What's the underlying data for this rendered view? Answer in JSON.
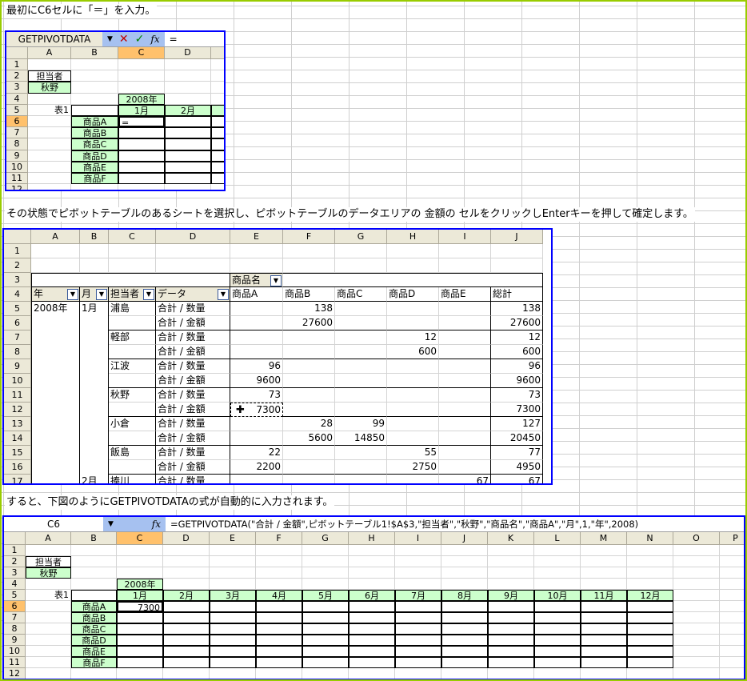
{
  "captions": {
    "step1": "最初にC6セルに「＝」を入力。",
    "step2": "その状態でピボットテーブルのあるシートを選択し、ピボットテーブルのデータエリアの 金額の セルをクリックしEnterキーを押して確定します。",
    "step3": "すると、下図のようにGETPIVOTDATAの式が自動的に入力されます。"
  },
  "colors": {
    "frame": "#99cc00",
    "panel_border": "#0000ff",
    "header_fill": "#ccffcc",
    "selected_header": "#ffc16c",
    "formula_button_bg": "#a6c1f0"
  },
  "sheet1": {
    "name_box": "GETPIVOTDATA",
    "formula": "=",
    "icons": [
      "dropdown-arrow-icon",
      "cancel-x-icon",
      "enter-check-icon",
      "fx-icon"
    ],
    "fx_label": "fx",
    "col_headers": [
      "A",
      "B",
      "C",
      "D",
      ""
    ],
    "row_headers": [
      "1",
      "2",
      "3",
      "4",
      "5",
      "6",
      "7",
      "8",
      "9",
      "10",
      "11",
      "12"
    ],
    "rows": [
      [
        "",
        "",
        "",
        "",
        ""
      ],
      [
        "担当者",
        "",
        "",
        "",
        ""
      ],
      [
        "秋野",
        "",
        "",
        "",
        ""
      ],
      [
        "",
        "",
        "2008年",
        "",
        ""
      ],
      [
        "表1",
        "",
        "1月",
        "2月",
        ""
      ],
      [
        "",
        "商品A",
        "=",
        "",
        ""
      ],
      [
        "",
        "商品B",
        "",
        "",
        ""
      ],
      [
        "",
        "商品C",
        "",
        "",
        ""
      ],
      [
        "",
        "商品D",
        "",
        "",
        ""
      ],
      [
        "",
        "商品E",
        "",
        "",
        ""
      ],
      [
        "",
        "商品F",
        "",
        "",
        ""
      ],
      [
        "",
        "",
        "",
        "",
        ""
      ]
    ]
  },
  "sheet2": {
    "col_headers": [
      "A",
      "B",
      "C",
      "D",
      "E",
      "F",
      "G",
      "H",
      "I",
      "J"
    ],
    "row_headers": [
      "1",
      "2",
      "3",
      "4",
      "5",
      "6",
      "7",
      "8",
      "9",
      "10",
      "11",
      "12",
      "13",
      "14",
      "15",
      "16",
      "17"
    ],
    "rows": [
      [
        "",
        "",
        "",
        "",
        "",
        "",
        "",
        "",
        "",
        ""
      ],
      [
        "",
        "",
        "",
        "",
        "",
        "",
        "",
        "",
        "",
        ""
      ],
      [
        "",
        "",
        "",
        "",
        "商品名",
        "",
        "",
        "",
        "",
        ""
      ],
      [
        "年",
        "月",
        "担当者",
        "データ",
        "商品A",
        "商品B",
        "商品C",
        "商品D",
        "商品E",
        "総計"
      ],
      [
        "2008年",
        "1月",
        "浦島",
        "合計 / 数量",
        "",
        "138",
        "",
        "",
        "",
        "138"
      ],
      [
        "",
        "",
        "",
        "合計 / 金額",
        "",
        "27600",
        "",
        "",
        "",
        "27600"
      ],
      [
        "",
        "",
        "軽部",
        "合計 / 数量",
        "",
        "",
        "",
        "12",
        "",
        "12"
      ],
      [
        "",
        "",
        "",
        "合計 / 金額",
        "",
        "",
        "",
        "600",
        "",
        "600"
      ],
      [
        "",
        "",
        "江波",
        "合計 / 数量",
        "96",
        "",
        "",
        "",
        "",
        "96"
      ],
      [
        "",
        "",
        "",
        "合計 / 金額",
        "9600",
        "",
        "",
        "",
        "",
        "9600"
      ],
      [
        "",
        "",
        "秋野",
        "合計 / 数量",
        "73",
        "",
        "",
        "",
        "",
        "73"
      ],
      [
        "",
        "",
        "",
        "合計 / 金額",
        "7300",
        "",
        "",
        "",
        "",
        "7300"
      ],
      [
        "",
        "",
        "小倉",
        "合計 / 数量",
        "",
        "28",
        "99",
        "",
        "",
        "127"
      ],
      [
        "",
        "",
        "",
        "合計 / 金額",
        "",
        "5600",
        "14850",
        "",
        "",
        "20450"
      ],
      [
        "",
        "",
        "飯島",
        "合計 / 数量",
        "22",
        "",
        "",
        "55",
        "",
        "77"
      ],
      [
        "",
        "",
        "",
        "合計 / 金額",
        "2200",
        "",
        "",
        "2750",
        "",
        "4950"
      ],
      [
        "",
        "2月",
        "捧川",
        "合計 / 数量",
        "",
        "",
        "",
        "",
        "67",
        "67"
      ]
    ]
  },
  "sheet3": {
    "name_box": "C6",
    "formula": "=GETPIVOTDATA(\"合計 / 金額\",ピボットテーブル1!$A$3,\"担当者\",\"秋野\",\"商品名\",\"商品A\",\"月\",1,\"年\",2008)",
    "icons": [
      "dropdown-arrow-icon",
      "fx-icon"
    ],
    "fx_label": "fx",
    "col_headers": [
      "A",
      "B",
      "C",
      "D",
      "E",
      "F",
      "G",
      "H",
      "I",
      "J",
      "K",
      "L",
      "M",
      "N",
      "O",
      "P"
    ],
    "row_headers": [
      "1",
      "2",
      "3",
      "4",
      "5",
      "6",
      "7",
      "8",
      "9",
      "10",
      "11",
      "12"
    ],
    "rows": [
      [
        "",
        "",
        "",
        "",
        "",
        "",
        "",
        "",
        "",
        "",
        "",
        "",
        "",
        "",
        "",
        ""
      ],
      [
        "担当者",
        "",
        "",
        "",
        "",
        "",
        "",
        "",
        "",
        "",
        "",
        "",
        "",
        "",
        "",
        ""
      ],
      [
        "秋野",
        "",
        "",
        "",
        "",
        "",
        "",
        "",
        "",
        "",
        "",
        "",
        "",
        "",
        "",
        ""
      ],
      [
        "",
        "",
        "2008年",
        "",
        "",
        "",
        "",
        "",
        "",
        "",
        "",
        "",
        "",
        "",
        "",
        ""
      ],
      [
        "表1",
        "",
        "1月",
        "2月",
        "3月",
        "4月",
        "5月",
        "6月",
        "7月",
        "8月",
        "9月",
        "10月",
        "11月",
        "12月",
        "",
        ""
      ],
      [
        "",
        "商品A",
        "7300",
        "",
        "",
        "",
        "",
        "",
        "",
        "",
        "",
        "",
        "",
        "",
        "",
        ""
      ],
      [
        "",
        "商品B",
        "",
        "",
        "",
        "",
        "",
        "",
        "",
        "",
        "",
        "",
        "",
        "",
        "",
        ""
      ],
      [
        "",
        "商品C",
        "",
        "",
        "",
        "",
        "",
        "",
        "",
        "",
        "",
        "",
        "",
        "",
        "",
        ""
      ],
      [
        "",
        "商品D",
        "",
        "",
        "",
        "",
        "",
        "",
        "",
        "",
        "",
        "",
        "",
        "",
        "",
        ""
      ],
      [
        "",
        "商品E",
        "",
        "",
        "",
        "",
        "",
        "",
        "",
        "",
        "",
        "",
        "",
        "",
        "",
        ""
      ],
      [
        "",
        "商品F",
        "",
        "",
        "",
        "",
        "",
        "",
        "",
        "",
        "",
        "",
        "",
        "",
        "",
        ""
      ],
      [
        "",
        "",
        "",
        "",
        "",
        "",
        "",
        "",
        "",
        "",
        "",
        "",
        "",
        "",
        "",
        ""
      ]
    ]
  }
}
